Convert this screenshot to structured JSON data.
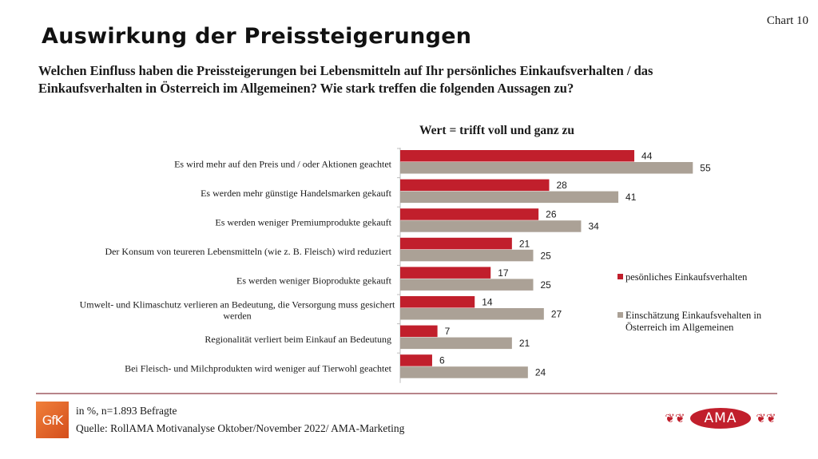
{
  "header": {
    "chart_number": "Chart 10",
    "title": "Auswirkung der Preissteigerungen",
    "question": "Welchen Einfluss haben die Preissteigerungen bei Lebensmitteln auf Ihr persönliches Einkaufsverhalten / das Einkaufsverhalten in Österreich im Allgemeinen? Wie stark treffen die folgenden Aussagen zu?"
  },
  "footer": {
    "note": "in %, n=1.893 Befragte",
    "source": "Quelle: RollAMA Motivanalyse Oktober/November 2022/ AMA-Marketing",
    "logo_left": "GfK",
    "logo_right": "AMA"
  },
  "colors": {
    "series_personal": "#c11f2c",
    "series_general": "#aba196",
    "accent_line": "#b7848a",
    "gfk_orange": "#e4632a"
  },
  "chart_data": {
    "type": "bar",
    "orientation": "horizontal",
    "title": "Wert = trifft voll und ganz zu",
    "xlabel": "",
    "ylabel": "",
    "xlim": [
      0,
      60
    ],
    "grid": false,
    "legend_position": "right",
    "categories": [
      "Es wird mehr auf den Preis und / oder Aktionen geachtet",
      "Es werden mehr günstige Handelsmarken gekauft",
      "Es werden weniger Premiumprodukte gekauft",
      "Der Konsum von teureren Lebensmitteln (wie z. B. Fleisch) wird reduziert",
      "Es werden weniger Bioprodukte gekauft",
      "Umwelt- und Klimaschutz verlieren an Bedeutung, die Versorgung muss gesichert werden",
      "Regionalität verliert beim Einkauf an Bedeutung",
      "Bei Fleisch- und Milchprodukten wird weniger auf Tierwohl geachtet"
    ],
    "category_lines": [
      [
        "Es wird mehr auf den Preis und / oder Aktionen geachtet"
      ],
      [
        "Es werden mehr günstige Handelsmarken gekauft"
      ],
      [
        "Es werden weniger Premiumprodukte gekauft"
      ],
      [
        "Der Konsum von teureren Lebensmitteln (wie z. B. Fleisch) wird reduziert"
      ],
      [
        "Es werden weniger Bioprodukte gekauft"
      ],
      [
        "Umwelt- und Klimaschutz verlieren an Bedeutung, die Versorgung muss gesichert",
        "werden"
      ],
      [
        "Regionalität verliert beim Einkauf an Bedeutung"
      ],
      [
        "Bei Fleisch- und Milchprodukten wird weniger auf Tierwohl geachtet"
      ]
    ],
    "series": [
      {
        "name": "pesönliches Einkaufsverhalten",
        "legend_lines": [
          "pesönliches Einkaufsverhalten"
        ],
        "color": "#c11f2c",
        "values": [
          44,
          28,
          26,
          21,
          17,
          14,
          7,
          6
        ]
      },
      {
        "name": "Einschätzung Einkaufsvehalten in Österreich im Allgemeinen",
        "legend_lines": [
          "Einschätzung Einkaufsvehalten in",
          "Österreich im Allgemeinen"
        ],
        "color": "#aba196",
        "values": [
          55,
          41,
          34,
          25,
          25,
          27,
          21,
          24
        ]
      }
    ]
  }
}
